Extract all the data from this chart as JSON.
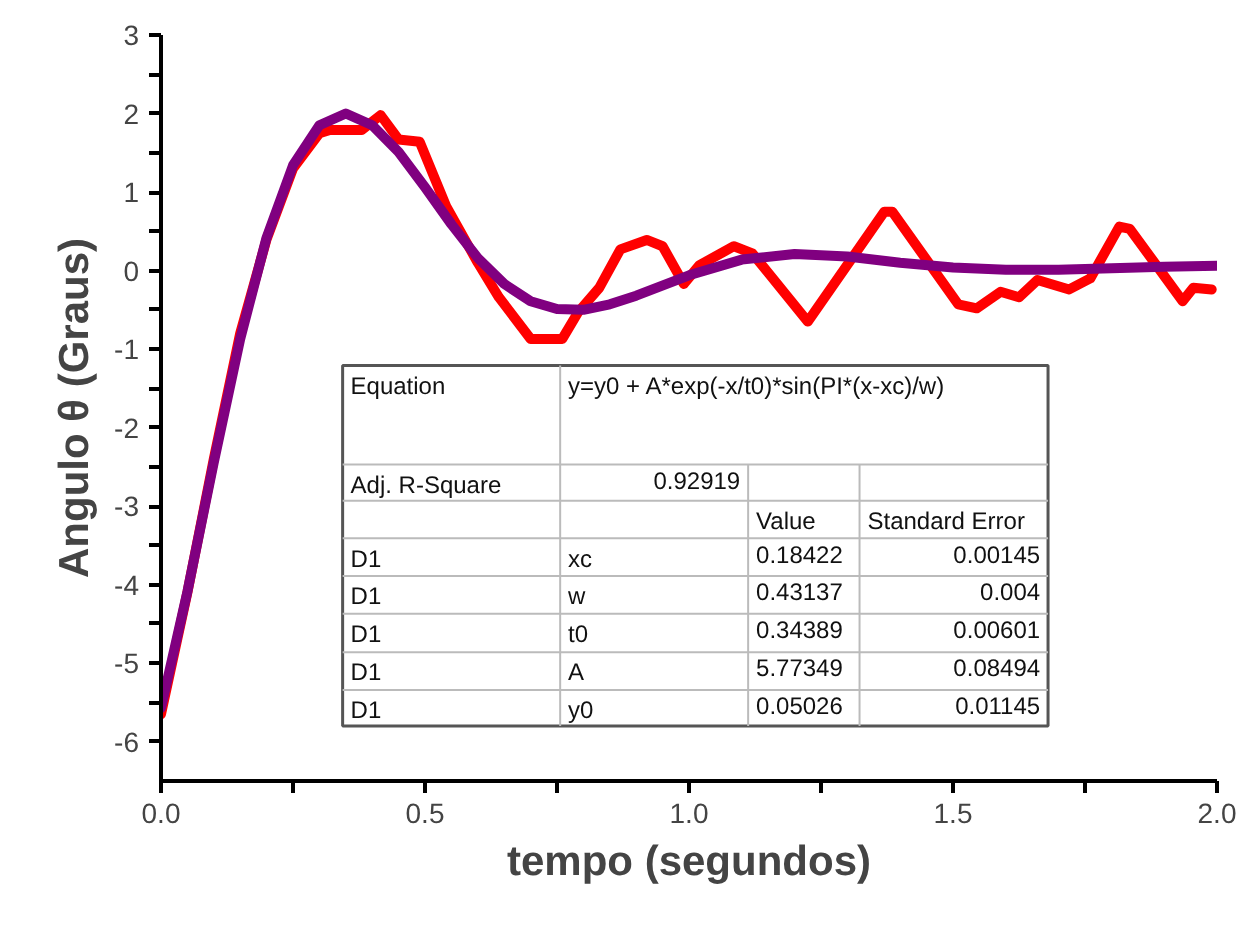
{
  "chart_data": {
    "type": "line",
    "xlabel": "tempo (segundos)",
    "ylabel": "Angulo θ (Graus)",
    "xlim": [
      0,
      2
    ],
    "ylim": [
      -6.5,
      3
    ],
    "xticks": [
      {
        "value": 0,
        "label": "0.0"
      },
      {
        "value": 0.25,
        "label": null
      },
      0.5,
      {
        "value": 0.75,
        "label": null
      },
      {
        "value": 1,
        "label": "1.0"
      },
      {
        "value": 1.25,
        "label": null
      },
      1.5,
      {
        "value": 1.75,
        "label": null
      },
      {
        "value": 2,
        "label": "2.0"
      }
    ],
    "yticks": [
      -6,
      {
        "value": -5.5,
        "label": null
      },
      -5,
      {
        "value": -4.5,
        "label": null
      },
      -4,
      {
        "value": -3.5,
        "label": null
      },
      -3,
      {
        "value": -2.5,
        "label": null
      },
      -2,
      {
        "value": -1.5,
        "label": null
      },
      -1,
      {
        "value": -0.5,
        "label": null
      },
      0,
      {
        "value": 0.5,
        "label": null
      },
      1,
      {
        "value": 1.5,
        "label": null
      },
      2,
      {
        "value": 2.5,
        "label": null
      },
      3
    ],
    "grid": false,
    "series": [
      {
        "color": "#ff0000",
        "x": [
          0,
          0.05,
          0.1,
          0.15,
          0.2,
          0.25,
          0.3,
          0.32,
          0.38,
          0.416,
          0.45,
          0.49,
          0.54,
          0.6,
          0.64,
          0.7,
          0.76,
          0.79,
          0.83,
          0.87,
          0.92,
          0.95,
          0.99,
          1.02,
          1.085,
          1.12,
          1.225,
          1.37,
          1.385,
          1.51,
          1.545,
          1.59,
          1.625,
          1.66,
          1.72,
          1.76,
          1.815,
          1.835,
          1.935,
          1.955,
          1.99
        ],
        "values": [
          -5.65,
          -4.1,
          -2.4,
          -0.8,
          0.4,
          1.3,
          1.75,
          1.79,
          1.79,
          1.98,
          1.67,
          1.64,
          0.82,
          0.1,
          -0.34,
          -0.87,
          -0.87,
          -0.53,
          -0.22,
          0.27,
          0.39,
          0.31,
          -0.17,
          0.07,
          0.31,
          0.22,
          -0.65,
          0.75,
          0.75,
          -0.43,
          -0.48,
          -0.27,
          -0.34,
          -0.12,
          -0.24,
          -0.1,
          0.56,
          0.53,
          -0.39,
          -0.22,
          -0.24
        ]
      },
      {
        "color": "#800080",
        "x": [
          0,
          0.05,
          0.1,
          0.15,
          0.2,
          0.25,
          0.3,
          0.35,
          0.4,
          0.45,
          0.5,
          0.55,
          0.6,
          0.65,
          0.7,
          0.75,
          0.8,
          0.85,
          0.9,
          1.0,
          1.1,
          1.2,
          1.3,
          1.4,
          1.5,
          1.6,
          1.7,
          1.8,
          1.9,
          2.0
        ],
        "values": [
          -5.57,
          -4.09,
          -2.44,
          -0.87,
          0.42,
          1.34,
          1.85,
          2.0,
          1.85,
          1.51,
          1.06,
          0.59,
          0.16,
          -0.17,
          -0.39,
          -0.49,
          -0.5,
          -0.43,
          -0.32,
          -0.06,
          0.14,
          0.21,
          0.18,
          0.1,
          0.04,
          0.01,
          0.01,
          0.03,
          0.05,
          0.06
        ]
      }
    ],
    "annotations": [
      "Equation",
      "y=y0 + A*exp(-x/t0)*sin(PI*(x-xc)/w)",
      "Adj. R-Square",
      "0.92919",
      "Value",
      "Standard Error",
      "D1",
      "xc",
      "0.18422",
      "0.00145",
      "D1",
      "w",
      "0.43137",
      "0.004",
      "D1",
      "t0",
      "0.34389",
      "0.00601",
      "D1",
      "A",
      "5.77349",
      "0.08494",
      "D1",
      "y0",
      "0.05026",
      "0.01145"
    ]
  }
}
